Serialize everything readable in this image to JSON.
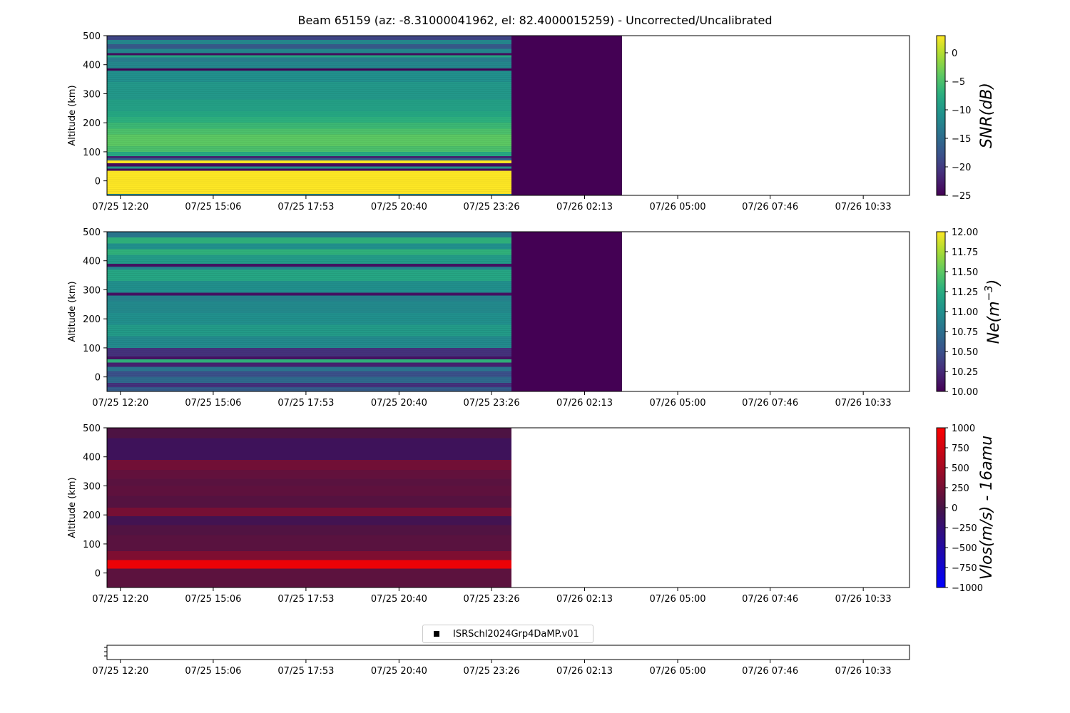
{
  "title": "Beam 65159 (az: -8.31000041962, el: 82.4000015259) - Uncorrected/Uncalibrated",
  "time_ticks": [
    "07/25 12:20",
    "07/25 15:06",
    "07/25 17:53",
    "07/25 20:40",
    "07/25 23:26",
    "07/26 02:13",
    "07/26 05:00",
    "07/26 07:46",
    "07/26 10:33"
  ],
  "legend_label": "ISRSchl2024Grp4DaMP.v01",
  "chart_data": [
    {
      "type": "heatmap",
      "ylabel": "Altitude (km)",
      "ylim": [
        -50,
        500
      ],
      "yticks": [
        0,
        100,
        200,
        300,
        400,
        500
      ],
      "colorbar_label": "SNR(dB)",
      "colorbar_range": [
        -25,
        3
      ],
      "colorbar_ticks": [
        "0",
        "−5",
        "−10",
        "−15",
        "−20",
        "−25"
      ],
      "colorbar_tick_values": [
        0,
        -5,
        -10,
        -15,
        -20,
        -25
      ],
      "colormap": "viridis",
      "data_time_range_hours": [
        0,
        11.7
      ],
      "fill_time_range_hours": [
        11.7,
        15.0
      ],
      "fill_value": -25,
      "profile_step_km": 7,
      "profile": [
        [
          -50,
          -45,
          -12
        ],
        [
          -45,
          35,
          3
        ],
        [
          35,
          42,
          -24
        ],
        [
          42,
          50,
          -10
        ],
        [
          50,
          60,
          -24
        ],
        [
          60,
          70,
          3
        ],
        [
          70,
          78,
          -16
        ],
        [
          78,
          85,
          -22
        ],
        [
          85,
          100,
          -8
        ],
        [
          100,
          120,
          -5
        ],
        [
          120,
          140,
          -4
        ],
        [
          140,
          160,
          -4
        ],
        [
          160,
          180,
          -5
        ],
        [
          180,
          200,
          -6
        ],
        [
          200,
          220,
          -7
        ],
        [
          220,
          240,
          -8
        ],
        [
          240,
          260,
          -9
        ],
        [
          260,
          280,
          -9
        ],
        [
          280,
          300,
          -10
        ],
        [
          300,
          320,
          -10
        ],
        [
          320,
          340,
          -10
        ],
        [
          340,
          360,
          -11
        ],
        [
          360,
          380,
          -11
        ],
        [
          380,
          387,
          -25
        ],
        [
          387,
          410,
          -12
        ],
        [
          410,
          425,
          -13
        ],
        [
          425,
          432,
          -8
        ],
        [
          432,
          440,
          -24
        ],
        [
          440,
          455,
          -12
        ],
        [
          455,
          470,
          -17
        ],
        [
          470,
          485,
          -12
        ],
        [
          485,
          500,
          -19
        ]
      ]
    },
    {
      "type": "heatmap",
      "ylabel": "Altitude (km)",
      "ylim": [
        -50,
        500
      ],
      "yticks": [
        0,
        100,
        200,
        300,
        400,
        500
      ],
      "colorbar_label": "Ne(m^-3)",
      "colorbar_range": [
        10.0,
        12.0
      ],
      "colorbar_ticks": [
        "12.00",
        "11.75",
        "11.50",
        "11.25",
        "11.00",
        "10.75",
        "10.50",
        "10.25",
        "10.00"
      ],
      "colorbar_tick_values": [
        12.0,
        11.75,
        11.5,
        11.25,
        11.0,
        10.75,
        10.5,
        10.25,
        10.0
      ],
      "colormap": "viridis",
      "data_time_range_hours": [
        0,
        11.7
      ],
      "fill_time_range_hours": [
        11.7,
        15.0
      ],
      "fill_value": 10.0,
      "profile_step_km": 7,
      "profile": [
        [
          -50,
          -35,
          10.6
        ],
        [
          -35,
          -20,
          10.3
        ],
        [
          -20,
          0,
          10.7
        ],
        [
          0,
          20,
          10.5
        ],
        [
          20,
          35,
          10.8
        ],
        [
          35,
          50,
          10.2
        ],
        [
          50,
          60,
          11.3
        ],
        [
          60,
          70,
          10.1
        ],
        [
          70,
          100,
          10.3
        ],
        [
          100,
          140,
          10.95
        ],
        [
          140,
          180,
          11.1
        ],
        [
          180,
          220,
          11.0
        ],
        [
          220,
          260,
          10.95
        ],
        [
          260,
          280,
          10.9
        ],
        [
          280,
          290,
          10.1
        ],
        [
          290,
          330,
          11.0
        ],
        [
          330,
          370,
          11.2
        ],
        [
          370,
          380,
          10.9
        ],
        [
          380,
          390,
          10.1
        ],
        [
          390,
          420,
          11.1
        ],
        [
          420,
          440,
          11.3
        ],
        [
          440,
          460,
          11.0
        ],
        [
          460,
          480,
          11.3
        ],
        [
          480,
          500,
          10.8
        ]
      ]
    },
    {
      "type": "heatmap",
      "ylabel": "Altitude (km)",
      "ylim": [
        -50,
        500
      ],
      "yticks": [
        0,
        100,
        200,
        300,
        400,
        500
      ],
      "colorbar_label": "Vlos(m/s) - 16amu",
      "colorbar_range": [
        -1000,
        1000
      ],
      "colorbar_ticks": [
        "1000",
        "750",
        "500",
        "250",
        "0",
        "−250",
        "−500",
        "−750",
        "−1000"
      ],
      "colorbar_tick_values": [
        1000,
        750,
        500,
        250,
        0,
        -250,
        -500,
        -750,
        -1000
      ],
      "colormap": "bwr_dark",
      "data_time_range_hours": [
        0,
        11.7
      ],
      "profile": [
        [
          -50,
          15,
          120
        ],
        [
          15,
          45,
          900
        ],
        [
          45,
          75,
          300
        ],
        [
          75,
          130,
          100
        ],
        [
          130,
          165,
          60
        ],
        [
          165,
          195,
          -60
        ],
        [
          195,
          225,
          260
        ],
        [
          225,
          265,
          80
        ],
        [
          265,
          300,
          130
        ],
        [
          300,
          325,
          100
        ],
        [
          325,
          355,
          150
        ],
        [
          355,
          390,
          230
        ],
        [
          390,
          465,
          -110
        ],
        [
          465,
          500,
          40
        ]
      ]
    }
  ],
  "time_axis": {
    "tick_hours": [
      0,
      2.777,
      5.55,
      8.333,
      11.1,
      13.883,
      16.667,
      19.433,
      22.217
    ],
    "xlim_hours": [
      -0.4,
      23.6
    ]
  }
}
